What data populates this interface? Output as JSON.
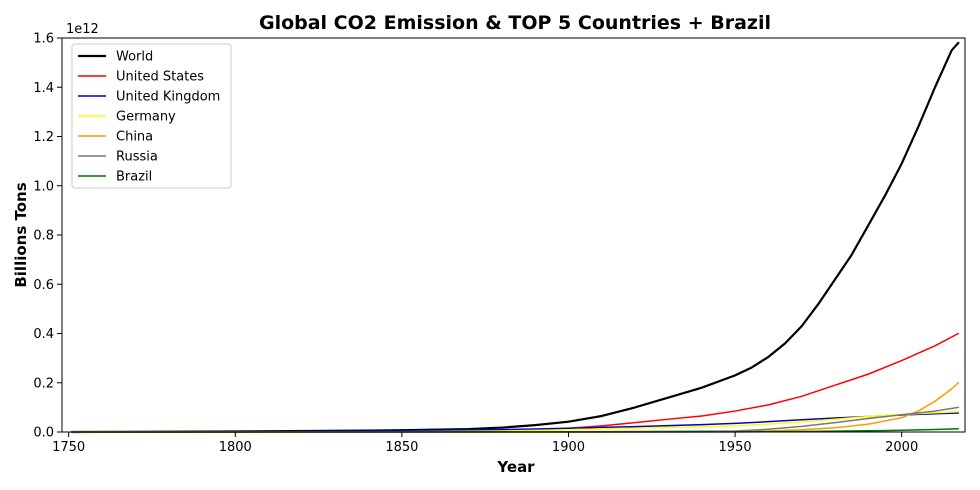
{
  "chart_data": {
    "type": "line",
    "title": "Global CO2 Emission & TOP 5 Countries + Brazil",
    "xlabel": "Year",
    "ylabel": "Billions Tons",
    "offset_label": "1e12",
    "xlim": [
      1748,
      2019
    ],
    "ylim": [
      0,
      1.6
    ],
    "x_ticks": [
      1750,
      1800,
      1850,
      1900,
      1950,
      2000
    ],
    "x_tick_labels": [
      "1750",
      "1800",
      "1850",
      "1900",
      "1950",
      "2000"
    ],
    "y_ticks": [
      0,
      0.2,
      0.4,
      0.6,
      0.8,
      1.0,
      1.2,
      1.4,
      1.6
    ],
    "y_tick_labels": [
      "0.0",
      "0.2",
      "0.4",
      "0.6",
      "0.8",
      "1.0",
      "1.2",
      "1.4",
      "1.6"
    ],
    "legend_position": "top-left",
    "grid": false,
    "series": [
      {
        "name": "World",
        "color": "#000000",
        "width": 2.2,
        "points": [
          [
            1751,
            0
          ],
          [
            1800,
            0.002
          ],
          [
            1850,
            0.007
          ],
          [
            1870,
            0.012
          ],
          [
            1880,
            0.018
          ],
          [
            1890,
            0.028
          ],
          [
            1900,
            0.042
          ],
          [
            1910,
            0.065
          ],
          [
            1920,
            0.1
          ],
          [
            1930,
            0.14
          ],
          [
            1940,
            0.18
          ],
          [
            1950,
            0.23
          ],
          [
            1955,
            0.262
          ],
          [
            1960,
            0.305
          ],
          [
            1965,
            0.36
          ],
          [
            1970,
            0.43
          ],
          [
            1975,
            0.52
          ],
          [
            1980,
            0.62
          ],
          [
            1985,
            0.72
          ],
          [
            1990,
            0.84
          ],
          [
            1995,
            0.96
          ],
          [
            2000,
            1.09
          ],
          [
            2005,
            1.24
          ],
          [
            2010,
            1.4
          ],
          [
            2015,
            1.55
          ],
          [
            2017,
            1.58
          ]
        ]
      },
      {
        "name": "United States",
        "color": "#ff0000",
        "width": 1.5,
        "points": [
          [
            1751,
            0
          ],
          [
            1800,
            0
          ],
          [
            1850,
            0.001
          ],
          [
            1870,
            0.003
          ],
          [
            1880,
            0.005
          ],
          [
            1890,
            0.009
          ],
          [
            1900,
            0.015
          ],
          [
            1910,
            0.025
          ],
          [
            1920,
            0.038
          ],
          [
            1930,
            0.052
          ],
          [
            1940,
            0.065
          ],
          [
            1950,
            0.085
          ],
          [
            1960,
            0.11
          ],
          [
            1970,
            0.145
          ],
          [
            1980,
            0.19
          ],
          [
            1990,
            0.235
          ],
          [
            2000,
            0.29
          ],
          [
            2010,
            0.35
          ],
          [
            2017,
            0.4
          ]
        ]
      },
      {
        "name": "United Kingdom",
        "color": "#0000cc",
        "width": 1.5,
        "points": [
          [
            1751,
            0
          ],
          [
            1800,
            0.001
          ],
          [
            1850,
            0.005
          ],
          [
            1870,
            0.008
          ],
          [
            1880,
            0.01
          ],
          [
            1890,
            0.012
          ],
          [
            1900,
            0.015
          ],
          [
            1910,
            0.019
          ],
          [
            1920,
            0.022
          ],
          [
            1930,
            0.026
          ],
          [
            1940,
            0.03
          ],
          [
            1950,
            0.035
          ],
          [
            1960,
            0.042
          ],
          [
            1970,
            0.05
          ],
          [
            1980,
            0.057
          ],
          [
            1990,
            0.063
          ],
          [
            2000,
            0.069
          ],
          [
            2010,
            0.074
          ],
          [
            2017,
            0.077
          ]
        ]
      },
      {
        "name": "Germany",
        "color": "#ffff00",
        "width": 1.5,
        "points": [
          [
            1751,
            0
          ],
          [
            1850,
            0.001
          ],
          [
            1880,
            0.004
          ],
          [
            1900,
            0.009
          ],
          [
            1920,
            0.015
          ],
          [
            1940,
            0.022
          ],
          [
            1950,
            0.025
          ],
          [
            1960,
            0.032
          ],
          [
            1970,
            0.041
          ],
          [
            1980,
            0.052
          ],
          [
            1990,
            0.063
          ],
          [
            2000,
            0.071
          ],
          [
            2010,
            0.078
          ],
          [
            2017,
            0.082
          ]
        ]
      },
      {
        "name": "China",
        "color": "#ff9900",
        "width": 1.5,
        "points": [
          [
            1751,
            0
          ],
          [
            1900,
            0
          ],
          [
            1950,
            0.001
          ],
          [
            1960,
            0.004
          ],
          [
            1970,
            0.009
          ],
          [
            1980,
            0.017
          ],
          [
            1990,
            0.032
          ],
          [
            2000,
            0.058
          ],
          [
            2005,
            0.085
          ],
          [
            2010,
            0.125
          ],
          [
            2015,
            0.175
          ],
          [
            2017,
            0.2
          ]
        ]
      },
      {
        "name": "Russia",
        "color": "#777777",
        "width": 1.5,
        "points": [
          [
            1751,
            0
          ],
          [
            1900,
            0.001
          ],
          [
            1950,
            0.004
          ],
          [
            1960,
            0.011
          ],
          [
            1970,
            0.023
          ],
          [
            1980,
            0.038
          ],
          [
            1990,
            0.055
          ],
          [
            2000,
            0.07
          ],
          [
            2010,
            0.085
          ],
          [
            2017,
            0.1
          ]
        ]
      },
      {
        "name": "Brazil",
        "color": "#007700",
        "width": 1.5,
        "points": [
          [
            1751,
            0
          ],
          [
            1950,
            0.0003
          ],
          [
            1970,
            0.002
          ],
          [
            1990,
            0.005
          ],
          [
            2000,
            0.007
          ],
          [
            2010,
            0.01
          ],
          [
            2017,
            0.013
          ]
        ]
      }
    ]
  }
}
